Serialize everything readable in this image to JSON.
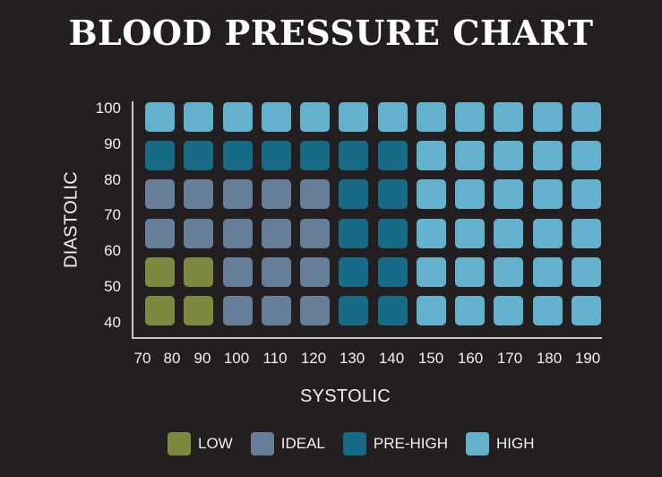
{
  "title": "BLOOD PRESSURE CHART",
  "colors": {
    "background": "#231f20",
    "LOW": "#7c8a3f",
    "IDEAL": "#677e99",
    "PRE-HIGH": "#176b86",
    "HIGH": "#63b1cc"
  },
  "chart_data": {
    "type": "heatmap",
    "title": "BLOOD PRESSURE CHART",
    "xlabel": "SYSTOLIC",
    "ylabel": "DIASTOLIC",
    "x_ticks": [
      "70",
      "80",
      "90",
      "100",
      "110",
      "120",
      "130",
      "140",
      "150",
      "160",
      "170",
      "180",
      "190"
    ],
    "y_ticks": [
      "100",
      "90",
      "80",
      "70",
      "60",
      "50",
      "40"
    ],
    "grid_rows": 6,
    "grid_cols": 12,
    "cells": [
      [
        "HIGH",
        "HIGH",
        "HIGH",
        "HIGH",
        "HIGH",
        "HIGH",
        "HIGH",
        "HIGH",
        "HIGH",
        "HIGH",
        "HIGH",
        "HIGH"
      ],
      [
        "PRE-HIGH",
        "PRE-HIGH",
        "PRE-HIGH",
        "PRE-HIGH",
        "PRE-HIGH",
        "PRE-HIGH",
        "PRE-HIGH",
        "HIGH",
        "HIGH",
        "HIGH",
        "HIGH",
        "HIGH"
      ],
      [
        "IDEAL",
        "IDEAL",
        "IDEAL",
        "IDEAL",
        "IDEAL",
        "PRE-HIGH",
        "PRE-HIGH",
        "HIGH",
        "HIGH",
        "HIGH",
        "HIGH",
        "HIGH"
      ],
      [
        "IDEAL",
        "IDEAL",
        "IDEAL",
        "IDEAL",
        "IDEAL",
        "PRE-HIGH",
        "PRE-HIGH",
        "HIGH",
        "HIGH",
        "HIGH",
        "HIGH",
        "HIGH"
      ],
      [
        "LOW",
        "LOW",
        "IDEAL",
        "IDEAL",
        "IDEAL",
        "PRE-HIGH",
        "PRE-HIGH",
        "HIGH",
        "HIGH",
        "HIGH",
        "HIGH",
        "HIGH"
      ],
      [
        "LOW",
        "LOW",
        "IDEAL",
        "IDEAL",
        "IDEAL",
        "PRE-HIGH",
        "PRE-HIGH",
        "HIGH",
        "HIGH",
        "HIGH",
        "HIGH",
        "HIGH"
      ]
    ],
    "legend": [
      "LOW",
      "IDEAL",
      "PRE-HIGH",
      "HIGH"
    ],
    "legend_position": "bottom",
    "grid": false
  }
}
